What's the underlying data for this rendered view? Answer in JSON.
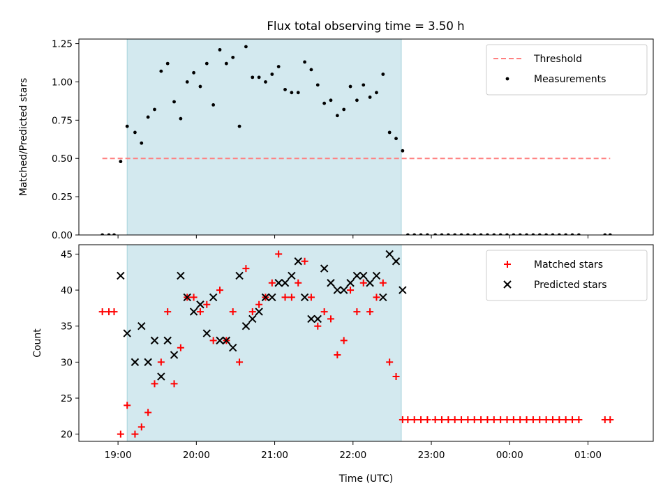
{
  "title": "Flux total observing time = 3.50 h",
  "chart_data": [
    {
      "type": "scatter",
      "ylabel": "Matched/Predicted stars",
      "xlim": [
        "18:30",
        "01:50"
      ],
      "ylim": [
        0,
        1.28
      ],
      "yticks": [
        "0.00",
        "0.25",
        "0.50",
        "0.75",
        "1.00",
        "1.25"
      ],
      "highlight_span": {
        "from": "19:07",
        "to": "22:37",
        "color": "#d3e9ef"
      },
      "legend_position": "upper right",
      "threshold": {
        "name": "Threshold",
        "value": 0.5,
        "from": "18:48",
        "to": "01:17",
        "color": "#ff8080"
      },
      "series": [
        {
          "name": "Measurements",
          "marker": "dot",
          "color": "#000000",
          "points": [
            [
              "18:48",
              0
            ],
            [
              "18:53",
              0
            ],
            [
              "18:57",
              0
            ],
            [
              "19:02",
              0.48
            ],
            [
              "19:07",
              0.71
            ],
            [
              "19:13",
              0.67
            ],
            [
              "19:18",
              0.6
            ],
            [
              "19:23",
              0.77
            ],
            [
              "19:28",
              0.82
            ],
            [
              "19:33",
              1.07
            ],
            [
              "19:38",
              1.12
            ],
            [
              "19:43",
              0.87
            ],
            [
              "19:48",
              0.76
            ],
            [
              "19:53",
              1.0
            ],
            [
              "19:58",
              1.06
            ],
            [
              "20:03",
              0.97
            ],
            [
              "20:08",
              1.12
            ],
            [
              "20:13",
              0.85
            ],
            [
              "20:18",
              1.21
            ],
            [
              "20:23",
              1.12
            ],
            [
              "20:28",
              1.16
            ],
            [
              "20:33",
              0.71
            ],
            [
              "20:38",
              1.23
            ],
            [
              "20:43",
              1.03
            ],
            [
              "20:48",
              1.03
            ],
            [
              "20:53",
              1.0
            ],
            [
              "20:58",
              1.05
            ],
            [
              "21:03",
              1.1
            ],
            [
              "21:08",
              0.95
            ],
            [
              "21:13",
              0.93
            ],
            [
              "21:18",
              0.93
            ],
            [
              "21:23",
              1.13
            ],
            [
              "21:28",
              1.08
            ],
            [
              "21:33",
              0.98
            ],
            [
              "21:38",
              0.86
            ],
            [
              "21:43",
              0.88
            ],
            [
              "21:48",
              0.78
            ],
            [
              "21:53",
              0.82
            ],
            [
              "21:58",
              0.97
            ],
            [
              "22:03",
              0.88
            ],
            [
              "22:08",
              0.98
            ],
            [
              "22:13",
              0.9
            ],
            [
              "22:18",
              0.93
            ],
            [
              "22:23",
              1.05
            ],
            [
              "22:28",
              0.67
            ],
            [
              "22:33",
              0.63
            ],
            [
              "22:38",
              0.55
            ],
            [
              "22:42",
              0
            ],
            [
              "22:47",
              0
            ],
            [
              "22:52",
              0
            ],
            [
              "22:57",
              0
            ],
            [
              "23:03",
              0
            ],
            [
              "23:08",
              0
            ],
            [
              "23:13",
              0
            ],
            [
              "23:18",
              0
            ],
            [
              "23:23",
              0
            ],
            [
              "23:28",
              0
            ],
            [
              "23:33",
              0
            ],
            [
              "23:38",
              0
            ],
            [
              "23:43",
              0
            ],
            [
              "23:48",
              0
            ],
            [
              "23:53",
              0
            ],
            [
              "23:58",
              0
            ],
            [
              "00:03",
              0
            ],
            [
              "00:08",
              0
            ],
            [
              "00:13",
              0
            ],
            [
              "00:18",
              0
            ],
            [
              "00:23",
              0
            ],
            [
              "00:28",
              0
            ],
            [
              "00:33",
              0
            ],
            [
              "00:38",
              0
            ],
            [
              "00:43",
              0
            ],
            [
              "00:48",
              0
            ],
            [
              "00:53",
              0
            ],
            [
              "01:13",
              0
            ],
            [
              "01:17",
              0
            ]
          ]
        }
      ]
    },
    {
      "type": "scatter",
      "xlabel": "Time (UTC)",
      "ylabel": "Count",
      "xlim": [
        "18:30",
        "01:50"
      ],
      "ylim": [
        19,
        46.3
      ],
      "yticks": [
        "20",
        "25",
        "30",
        "35",
        "40",
        "45"
      ],
      "xticks": [
        "19:00",
        "20:00",
        "21:00",
        "22:00",
        "23:00",
        "00:00",
        "01:00"
      ],
      "highlight_span": {
        "from": "19:07",
        "to": "22:37",
        "color": "#d3e9ef"
      },
      "legend_position": "upper right",
      "series": [
        {
          "name": "Matched stars",
          "marker": "plus",
          "color": "#ff0000",
          "points": [
            [
              "18:48",
              37
            ],
            [
              "18:53",
              37
            ],
            [
              "18:57",
              37
            ],
            [
              "19:02",
              20
            ],
            [
              "19:07",
              24
            ],
            [
              "19:13",
              20
            ],
            [
              "19:18",
              21
            ],
            [
              "19:23",
              23
            ],
            [
              "19:28",
              27
            ],
            [
              "19:33",
              30
            ],
            [
              "19:38",
              37
            ],
            [
              "19:43",
              27
            ],
            [
              "19:48",
              32
            ],
            [
              "19:53",
              39
            ],
            [
              "19:58",
              39
            ],
            [
              "20:03",
              37
            ],
            [
              "20:08",
              38
            ],
            [
              "20:13",
              33
            ],
            [
              "20:18",
              40
            ],
            [
              "20:23",
              33
            ],
            [
              "20:28",
              37
            ],
            [
              "20:33",
              30
            ],
            [
              "20:38",
              43
            ],
            [
              "20:43",
              37
            ],
            [
              "20:48",
              38
            ],
            [
              "20:53",
              39
            ],
            [
              "20:58",
              41
            ],
            [
              "21:03",
              45
            ],
            [
              "21:08",
              39
            ],
            [
              "21:13",
              39
            ],
            [
              "21:18",
              41
            ],
            [
              "21:23",
              44
            ],
            [
              "21:28",
              39
            ],
            [
              "21:33",
              35
            ],
            [
              "21:38",
              37
            ],
            [
              "21:43",
              36
            ],
            [
              "21:48",
              31
            ],
            [
              "21:53",
              33
            ],
            [
              "21:58",
              40
            ],
            [
              "22:03",
              37
            ],
            [
              "22:08",
              41
            ],
            [
              "22:13",
              37
            ],
            [
              "22:18",
              39
            ],
            [
              "22:23",
              41
            ],
            [
              "22:28",
              30
            ],
            [
              "22:33",
              28
            ],
            [
              "22:38",
              22
            ],
            [
              "22:42",
              22
            ],
            [
              "22:47",
              22
            ],
            [
              "22:52",
              22
            ],
            [
              "22:57",
              22
            ],
            [
              "23:03",
              22
            ],
            [
              "23:08",
              22
            ],
            [
              "23:13",
              22
            ],
            [
              "23:18",
              22
            ],
            [
              "23:23",
              22
            ],
            [
              "23:28",
              22
            ],
            [
              "23:33",
              22
            ],
            [
              "23:38",
              22
            ],
            [
              "23:43",
              22
            ],
            [
              "23:48",
              22
            ],
            [
              "23:53",
              22
            ],
            [
              "23:58",
              22
            ],
            [
              "00:03",
              22
            ],
            [
              "00:08",
              22
            ],
            [
              "00:13",
              22
            ],
            [
              "00:18",
              22
            ],
            [
              "00:23",
              22
            ],
            [
              "00:28",
              22
            ],
            [
              "00:33",
              22
            ],
            [
              "00:38",
              22
            ],
            [
              "00:43",
              22
            ],
            [
              "00:48",
              22
            ],
            [
              "00:53",
              22
            ],
            [
              "01:13",
              22
            ],
            [
              "01:17",
              22
            ]
          ]
        },
        {
          "name": "Predicted stars",
          "marker": "x",
          "color": "#000000",
          "points": [
            [
              "19:02",
              42
            ],
            [
              "19:07",
              34
            ],
            [
              "19:13",
              30
            ],
            [
              "19:18",
              35
            ],
            [
              "19:23",
              30
            ],
            [
              "19:28",
              33
            ],
            [
              "19:33",
              28
            ],
            [
              "19:38",
              33
            ],
            [
              "19:43",
              31
            ],
            [
              "19:48",
              42
            ],
            [
              "19:53",
              39
            ],
            [
              "19:58",
              37
            ],
            [
              "20:03",
              38
            ],
            [
              "20:08",
              34
            ],
            [
              "20:13",
              39
            ],
            [
              "20:18",
              33
            ],
            [
              "20:23",
              33
            ],
            [
              "20:28",
              32
            ],
            [
              "20:33",
              42
            ],
            [
              "20:38",
              35
            ],
            [
              "20:43",
              36
            ],
            [
              "20:48",
              37
            ],
            [
              "20:53",
              39
            ],
            [
              "20:58",
              39
            ],
            [
              "21:03",
              41
            ],
            [
              "21:08",
              41
            ],
            [
              "21:13",
              42
            ],
            [
              "21:18",
              44
            ],
            [
              "21:23",
              39
            ],
            [
              "21:28",
              36
            ],
            [
              "21:33",
              36
            ],
            [
              "21:38",
              43
            ],
            [
              "21:43",
              41
            ],
            [
              "21:48",
              40
            ],
            [
              "21:53",
              40
            ],
            [
              "21:58",
              41
            ],
            [
              "22:03",
              42
            ],
            [
              "22:08",
              42
            ],
            [
              "22:13",
              41
            ],
            [
              "22:18",
              42
            ],
            [
              "22:23",
              39
            ],
            [
              "22:28",
              45
            ],
            [
              "22:33",
              44
            ],
            [
              "22:38",
              40
            ]
          ]
        }
      ]
    }
  ]
}
